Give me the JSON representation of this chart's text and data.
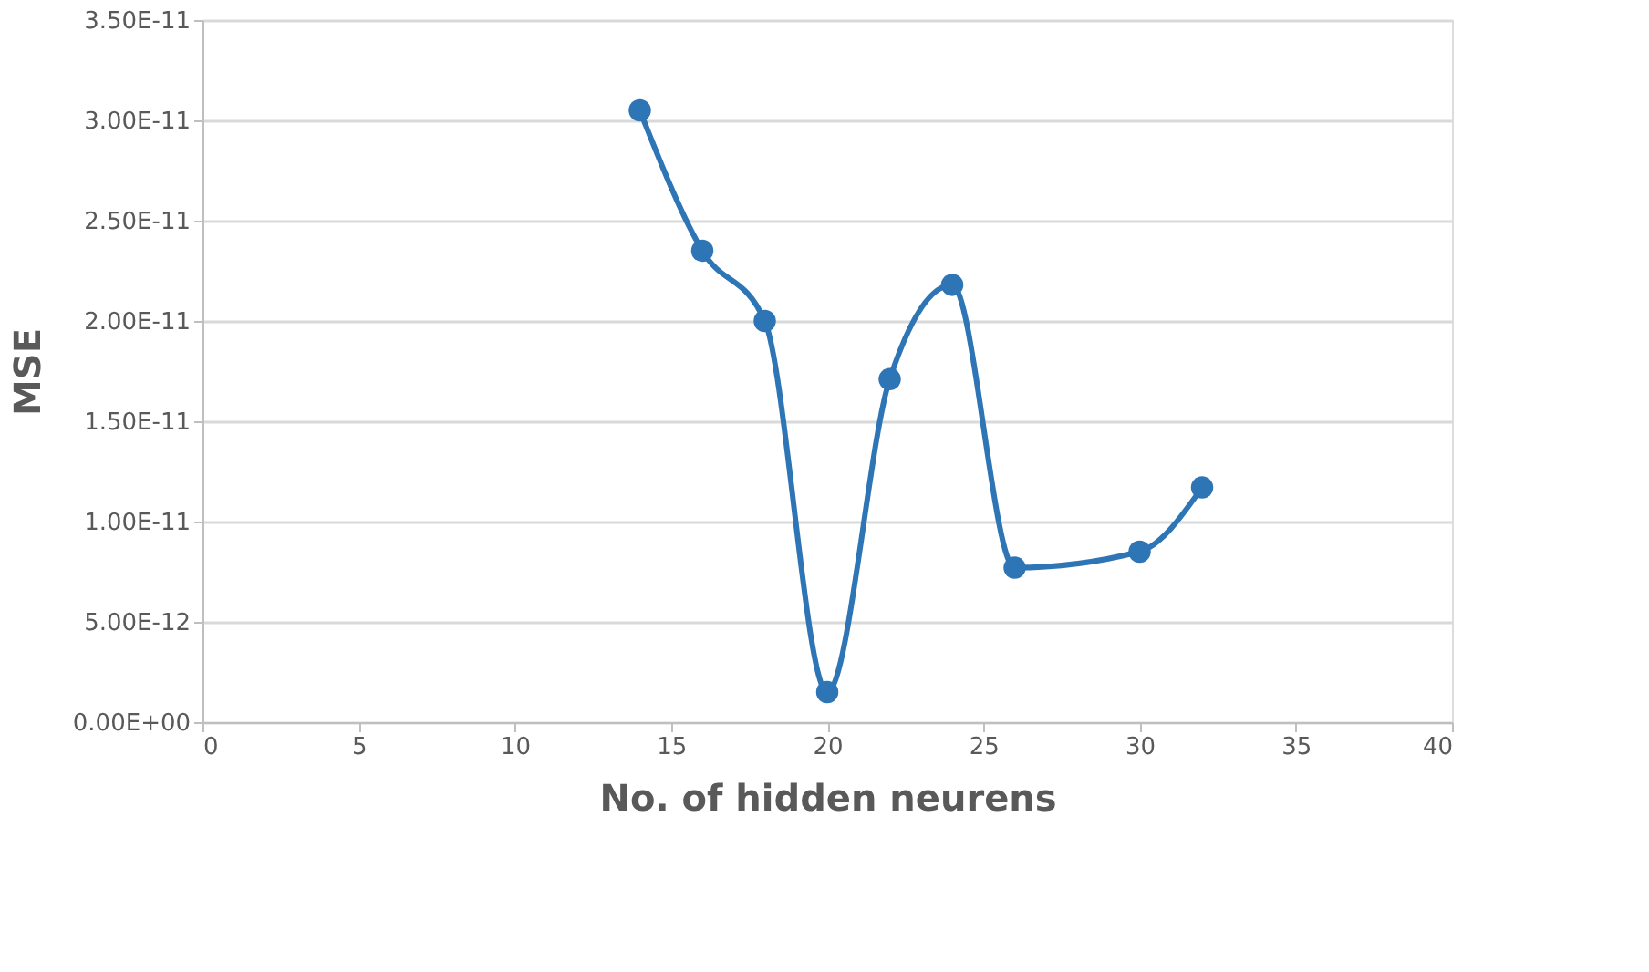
{
  "chart_data": {
    "type": "line",
    "xlabel": "No. of hidden neurens",
    "ylabel": "MSE",
    "x": [
      14,
      16,
      18,
      20,
      22,
      24,
      26,
      30,
      32
    ],
    "series": [
      {
        "color": "#2e75b6",
        "values": [
          3.05e-11,
          2.35e-11,
          2e-11,
          1.5e-12,
          1.71e-11,
          2.18e-11,
          7.7e-12,
          8.5e-12,
          1.17e-11
        ]
      }
    ],
    "xlim": [
      0,
      40
    ],
    "xticks": [
      0,
      5,
      10,
      15,
      20,
      25,
      30,
      35,
      40
    ],
    "ylim": [
      0,
      3.5e-11
    ],
    "yticks": [
      {
        "value": 0,
        "label": "0.00E+00"
      },
      {
        "value": 5e-12,
        "label": "5.00E-12"
      },
      {
        "value": 1e-11,
        "label": "1.00E-11"
      },
      {
        "value": 1.5e-11,
        "label": "1.50E-11"
      },
      {
        "value": 2e-11,
        "label": "2.00E-11"
      },
      {
        "value": 2.5e-11,
        "label": "2.50E-11"
      },
      {
        "value": 3e-11,
        "label": "3.00E-11"
      },
      {
        "value": 3.5e-11,
        "label": "3.50E-11"
      }
    ],
    "grid": "y",
    "marker": "circle",
    "line_style": "solid",
    "legend": false
  }
}
